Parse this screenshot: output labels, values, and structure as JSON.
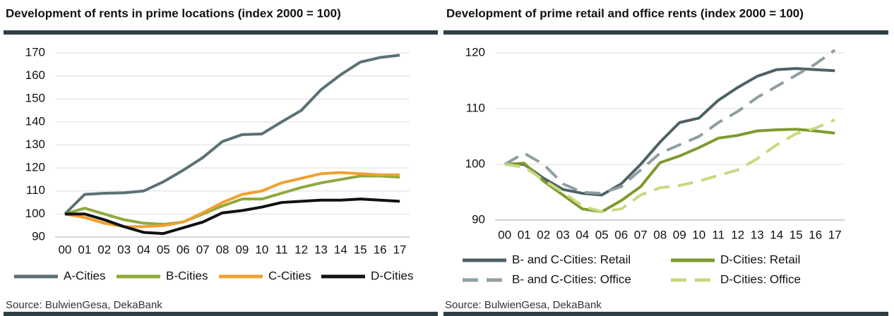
{
  "chart_data": [
    {
      "type": "line",
      "title": "Development of rents in prime locations (index 2000 = 100)",
      "source": "Source: BulwienGesa, DekaBank",
      "categories": [
        "00",
        "01",
        "02",
        "03",
        "04",
        "05",
        "06",
        "07",
        "08",
        "09",
        "10",
        "11",
        "12",
        "13",
        "14",
        "15",
        "16",
        "17"
      ],
      "ylim": [
        90,
        170
      ],
      "yticks": [
        90,
        100,
        110,
        120,
        130,
        140,
        150,
        160,
        170
      ],
      "grid": true,
      "legend": "bottom",
      "series": [
        {
          "name": "A-Cities",
          "color": "#5b7176",
          "dashed": false,
          "values": [
            100,
            108.5,
            109,
            109.2,
            110,
            114,
            119,
            124.5,
            131.5,
            134.5,
            134.8,
            140,
            145,
            154,
            160.5,
            166,
            168,
            169
          ]
        },
        {
          "name": "B-Cities",
          "color": "#8fa93c",
          "dashed": false,
          "values": [
            100,
            102.5,
            100,
            97.5,
            96,
            95.5,
            96.5,
            100,
            103.5,
            106.5,
            106.5,
            109,
            111.5,
            113.5,
            115,
            116.5,
            116.5,
            116
          ]
        },
        {
          "name": "C-Cities",
          "color": "#f0a030",
          "dashed": false,
          "values": [
            100,
            98.5,
            96,
            94.5,
            94.5,
            95,
            96.5,
            100.5,
            105,
            108.5,
            110,
            113.5,
            115.5,
            117.5,
            118,
            117.5,
            117,
            117
          ]
        },
        {
          "name": "D-Cities",
          "color": "#111111",
          "dashed": false,
          "values": [
            100,
            100,
            97.5,
            94.5,
            92,
            91.5,
            94,
            96.5,
            100.5,
            101.5,
            103,
            105,
            105.5,
            106,
            106,
            106.5,
            106,
            105.5
          ]
        }
      ]
    },
    {
      "type": "line",
      "title": "Development of prime retail and office rents (index 2000 = 100)",
      "source": "Source: BulwienGesa, DekaBank",
      "categories": [
        "00",
        "01",
        "02",
        "03",
        "04",
        "05",
        "06",
        "07",
        "08",
        "09",
        "10",
        "11",
        "12",
        "13",
        "14",
        "15",
        "16",
        "17"
      ],
      "ylim": [
        90,
        120
      ],
      "yticks": [
        90,
        100,
        110,
        120
      ],
      "grid": true,
      "legend": "bottom",
      "series": [
        {
          "name": "B- and C-Cities: Retail",
          "color": "#4e6266",
          "dashed": false,
          "values": [
            100,
            100,
            97.5,
            95.5,
            94.8,
            94.5,
            96.5,
            100,
            104,
            107.5,
            108.3,
            111.5,
            113.8,
            115.8,
            117,
            117.2,
            117,
            116.8
          ]
        },
        {
          "name": "D-Cities: Retail",
          "color": "#7e9a30",
          "dashed": false,
          "values": [
            100,
            100.2,
            97,
            94.5,
            92,
            91.5,
            93.5,
            96,
            100.3,
            101.5,
            103,
            104.7,
            105.2,
            106,
            106.2,
            106.3,
            106,
            105.6
          ]
        },
        {
          "name": "B- and C-Cities: Office",
          "color": "#8f9ea2",
          "dashed": true,
          "values": [
            100,
            102,
            100,
            96.5,
            95,
            94.8,
            96,
            99,
            102,
            103.5,
            105,
            107.5,
            109.5,
            112,
            114,
            116,
            118,
            120.5
          ]
        },
        {
          "name": "D-Cities: Office",
          "color": "#c8d880",
          "dashed": true,
          "values": [
            100,
            99.5,
            97.2,
            95,
            92.5,
            91.5,
            92,
            94.5,
            95.8,
            96.2,
            97,
            98,
            99,
            101,
            103.5,
            105.5,
            106.5,
            108
          ]
        }
      ]
    }
  ]
}
